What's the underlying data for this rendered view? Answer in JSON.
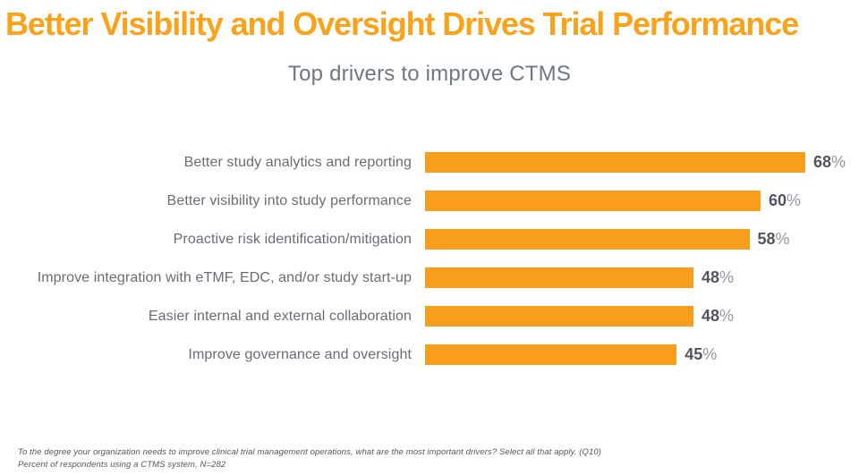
{
  "title": {
    "text": "Better Visibility and Oversight Drives Trial Performance",
    "color": "#FAA21C"
  },
  "subtitle": {
    "text": "Top drivers to improve CTMS",
    "color": "#6E7881"
  },
  "chart_data": {
    "type": "bar",
    "orientation": "horizontal",
    "title": "Top drivers to improve CTMS",
    "categories": [
      "Better study analytics and reporting",
      "Better visibility into study performance",
      "Proactive risk identification/mitigation",
      "Improve integration with eTMF, EDC, and/or study start-up",
      "Easier internal and external collaboration",
      "Improve governance and oversight"
    ],
    "values": [
      68,
      60,
      58,
      48,
      48,
      45
    ],
    "unit": "%",
    "xlim": [
      0,
      68
    ],
    "grid": false,
    "legend": false,
    "data_labels": [
      "68%",
      "60%",
      "58%",
      "48%",
      "48%",
      "45%"
    ],
    "colors": {
      "bar": "#F99D1C",
      "category_label": "#6B6B73",
      "value_number": "#54545C",
      "percent_sign": "#95959D"
    }
  },
  "footnote": {
    "line1": "To the degree your organization needs to improve clinical trial management operations, what are the most important drivers? Select all that apply. (Q10)",
    "line2": "Percent of respondents using a CTMS system, N=282",
    "color": "#55555E"
  }
}
